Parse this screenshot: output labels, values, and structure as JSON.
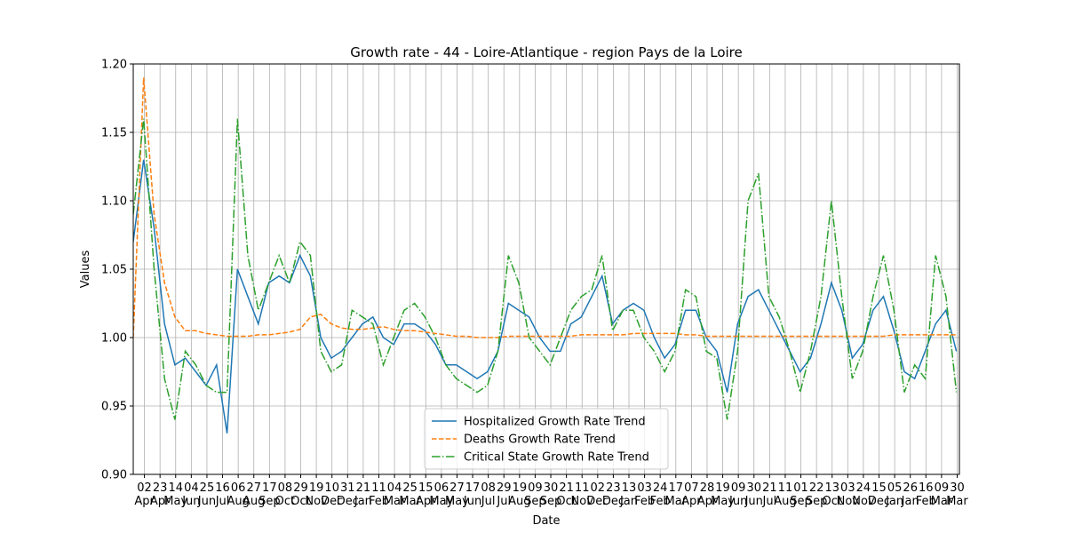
{
  "chart_data": {
    "type": "line",
    "title": "Growth rate - 44 - Loire-Atlantique - region Pays de la Loire",
    "xlabel": "Date",
    "ylabel": "Values",
    "grid": true,
    "legend": "lower center",
    "xlim": [
      0,
      1110
    ],
    "ylim": [
      0.9,
      1.2
    ],
    "yticks": [
      {
        "value": 0.9,
        "label": "0.90"
      },
      {
        "value": 0.95,
        "label": "0.95"
      },
      {
        "value": 1.0,
        "label": "1.00"
      },
      {
        "value": 1.05,
        "label": "1.05"
      },
      {
        "value": 1.1,
        "label": "1.10"
      },
      {
        "value": 1.15,
        "label": "1.15"
      },
      {
        "value": 1.2,
        "label": "1.20"
      }
    ],
    "xticks": [
      {
        "value": 15,
        "label": "02\nApr"
      },
      {
        "value": 36,
        "label": "23\nApr"
      },
      {
        "value": 57,
        "label": "14\nMay"
      },
      {
        "value": 78,
        "label": "04\nJun"
      },
      {
        "value": 99,
        "label": "25\nJun"
      },
      {
        "value": 120,
        "label": "16\nJul"
      },
      {
        "value": 141,
        "label": "06\nAug"
      },
      {
        "value": 162,
        "label": "27\nAug"
      },
      {
        "value": 183,
        "label": "17\nSep"
      },
      {
        "value": 204,
        "label": "08\nOct"
      },
      {
        "value": 225,
        "label": "29\nOct"
      },
      {
        "value": 246,
        "label": "19\nNov"
      },
      {
        "value": 267,
        "label": "10\nDec"
      },
      {
        "value": 288,
        "label": "31\nDec"
      },
      {
        "value": 309,
        "label": "21\nJan"
      },
      {
        "value": 330,
        "label": "11\nFeb"
      },
      {
        "value": 351,
        "label": "04\nMar"
      },
      {
        "value": 372,
        "label": "25\nMar"
      },
      {
        "value": 393,
        "label": "15\nApr"
      },
      {
        "value": 414,
        "label": "06\nMay"
      },
      {
        "value": 435,
        "label": "27\nMay"
      },
      {
        "value": 456,
        "label": "17\nJun"
      },
      {
        "value": 477,
        "label": "08\nJul"
      },
      {
        "value": 498,
        "label": "29\nJul"
      },
      {
        "value": 519,
        "label": "19\nAug"
      },
      {
        "value": 540,
        "label": "09\nSep"
      },
      {
        "value": 561,
        "label": "30\nSep"
      },
      {
        "value": 582,
        "label": "21\nOct"
      },
      {
        "value": 603,
        "label": "11\nNov"
      },
      {
        "value": 624,
        "label": "02\nDec"
      },
      {
        "value": 645,
        "label": "23\nDec"
      },
      {
        "value": 666,
        "label": "13\nJan"
      },
      {
        "value": 687,
        "label": "03\nFeb"
      },
      {
        "value": 708,
        "label": "24\nFeb"
      },
      {
        "value": 729,
        "label": "17\nMar"
      },
      {
        "value": 750,
        "label": "07\nApr"
      },
      {
        "value": 771,
        "label": "28\nApr"
      },
      {
        "value": 792,
        "label": "19\nMay"
      },
      {
        "value": 813,
        "label": "09\nJun"
      },
      {
        "value": 834,
        "label": "30\nJun"
      },
      {
        "value": 855,
        "label": "21\nJul"
      },
      {
        "value": 876,
        "label": "11\nAug"
      },
      {
        "value": 897,
        "label": "01\nSep"
      },
      {
        "value": 918,
        "label": "22\nSep"
      },
      {
        "value": 939,
        "label": "13\nOct"
      },
      {
        "value": 960,
        "label": "03\nNov"
      },
      {
        "value": 981,
        "label": "24\nNov"
      },
      {
        "value": 1002,
        "label": "15\nDec"
      },
      {
        "value": 1023,
        "label": "05\nJan"
      },
      {
        "value": 1044,
        "label": "26\nJan"
      },
      {
        "value": 1065,
        "label": "16\nFeb"
      },
      {
        "value": 1086,
        "label": "09\nMar"
      },
      {
        "value": 1107,
        "label": "30\nMar"
      }
    ],
    "x": [
      0,
      14,
      28,
      42,
      56,
      70,
      84,
      98,
      112,
      126,
      140,
      154,
      168,
      182,
      196,
      210,
      224,
      238,
      252,
      266,
      280,
      294,
      308,
      322,
      336,
      350,
      364,
      378,
      392,
      406,
      420,
      434,
      448,
      462,
      476,
      490,
      504,
      518,
      532,
      546,
      560,
      574,
      588,
      602,
      616,
      630,
      644,
      658,
      672,
      686,
      700,
      714,
      728,
      742,
      756,
      770,
      784,
      798,
      812,
      826,
      840,
      854,
      868,
      882,
      896,
      910,
      924,
      938,
      952,
      966,
      980,
      994,
      1008,
      1022,
      1036,
      1050,
      1064,
      1078,
      1092,
      1106
    ],
    "series": [
      {
        "name": "Hospitalized Growth Rate Trend",
        "color": "#1f77b4",
        "dash": "solid",
        "values": [
          1.07,
          1.13,
          1.08,
          1.01,
          0.98,
          0.985,
          0.975,
          0.965,
          0.98,
          0.93,
          1.05,
          1.03,
          1.01,
          1.04,
          1.045,
          1.04,
          1.06,
          1.045,
          1.0,
          0.985,
          0.99,
          1.0,
          1.01,
          1.015,
          1.0,
          0.995,
          1.01,
          1.01,
          1.005,
          0.995,
          0.98,
          0.98,
          0.975,
          0.97,
          0.975,
          0.99,
          1.025,
          1.02,
          1.015,
          1.0,
          0.99,
          0.99,
          1.01,
          1.015,
          1.03,
          1.045,
          1.01,
          1.02,
          1.025,
          1.02,
          1.0,
          0.985,
          0.995,
          1.02,
          1.02,
          1.0,
          0.99,
          0.96,
          1.01,
          1.03,
          1.035,
          1.02,
          1.005,
          0.99,
          0.975,
          0.985,
          1.01,
          1.04,
          1.02,
          0.985,
          0.995,
          1.02,
          1.03,
          1.005,
          0.975,
          0.97,
          0.99,
          1.01,
          1.02,
          0.99
        ]
      },
      {
        "name": "Deaths Growth Rate Trend",
        "color": "#ff7f0e",
        "dash": "dashed",
        "values": [
          1.0,
          1.19,
          1.09,
          1.04,
          1.015,
          1.005,
          1.005,
          1.003,
          1.002,
          1.001,
          1.001,
          1.001,
          1.002,
          1.002,
          1.003,
          1.004,
          1.006,
          1.015,
          1.017,
          1.01,
          1.007,
          1.006,
          1.006,
          1.007,
          1.008,
          1.006,
          1.005,
          1.005,
          1.004,
          1.003,
          1.002,
          1.001,
          1.001,
          1.0,
          1.0,
          1.0,
          1.001,
          1.001,
          1.001,
          1.001,
          1.001,
          1.001,
          1.001,
          1.002,
          1.002,
          1.002,
          1.002,
          1.002,
          1.003,
          1.003,
          1.003,
          1.003,
          1.003,
          1.002,
          1.002,
          1.001,
          1.001,
          1.001,
          1.001,
          1.001,
          1.001,
          1.001,
          1.001,
          1.001,
          1.001,
          1.001,
          1.001,
          1.001,
          1.001,
          1.001,
          1.001,
          1.001,
          1.001,
          1.002,
          1.002,
          1.002,
          1.002,
          1.002,
          1.002,
          1.002
        ]
      },
      {
        "name": "Critical State Growth Rate Trend",
        "color": "#2ca02c",
        "dash": "dashdot",
        "values": [
          1.09,
          1.16,
          1.05,
          0.97,
          0.94,
          0.99,
          0.98,
          0.965,
          0.96,
          0.96,
          1.16,
          1.06,
          1.02,
          1.04,
          1.06,
          1.04,
          1.07,
          1.06,
          0.99,
          0.975,
          0.98,
          1.02,
          1.015,
          1.01,
          0.98,
          1.0,
          1.02,
          1.025,
          1.015,
          1.0,
          0.98,
          0.97,
          0.965,
          0.96,
          0.965,
          0.99,
          1.06,
          1.04,
          1.0,
          0.99,
          0.98,
          1.0,
          1.02,
          1.03,
          1.035,
          1.06,
          1.005,
          1.02,
          1.02,
          1.0,
          0.99,
          0.975,
          0.99,
          1.035,
          1.03,
          0.99,
          0.985,
          0.94,
          0.99,
          1.1,
          1.12,
          1.03,
          1.015,
          0.99,
          0.96,
          0.99,
          1.03,
          1.1,
          1.03,
          0.97,
          0.99,
          1.03,
          1.06,
          1.02,
          0.96,
          0.98,
          0.97,
          1.06,
          1.03,
          0.96
        ]
      }
    ]
  }
}
